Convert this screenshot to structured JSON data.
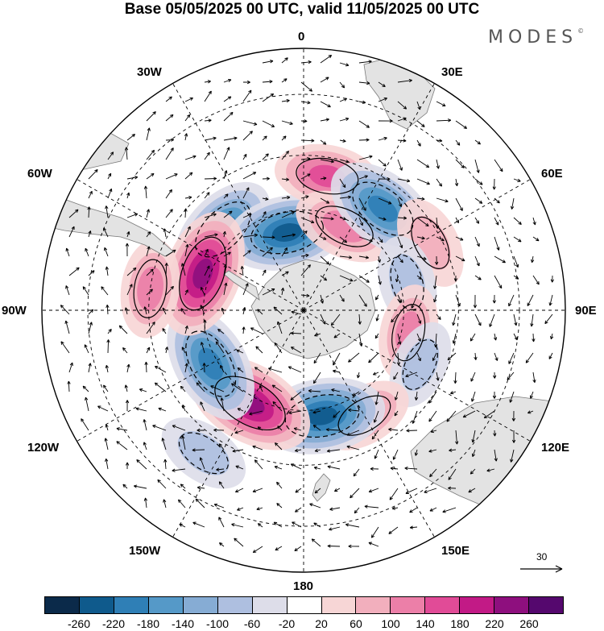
{
  "title": "Base 05/05/2025 00 UTC, valid 11/05/2025 00 UTC",
  "logo": "MODES",
  "logo_mark": "©",
  "longitude_labels": {
    "lon_0": "0",
    "lon_30e": "30E",
    "lon_60e": "60E",
    "lon_90e": "90E",
    "lon_120e": "120E",
    "lon_150e": "150E",
    "lon_180": "180",
    "lon_150w": "150W",
    "lon_120w": "120W",
    "lon_90w": "90W",
    "lon_60w": "60W",
    "lon_30w": "30W"
  },
  "projection": "south-polar-stereographic",
  "reference_vector": {
    "label": "30",
    "value": 30
  },
  "colorbar": {
    "ticks": [
      "-260",
      "-220",
      "-180",
      "-140",
      "-100",
      "-60",
      "-20",
      "20",
      "60",
      "100",
      "140",
      "180",
      "220",
      "260"
    ],
    "colors": [
      "#0b2a4a",
      "#0f5a8c",
      "#2f7fb6",
      "#5599c8",
      "#86acd4",
      "#aebfe0",
      "#dddde9",
      "#ffffff",
      "#f7d6d6",
      "#f2afbd",
      "#ec7fa8",
      "#e14b97",
      "#c21a86",
      "#8e0f7e",
      "#55086e"
    ]
  },
  "colors": {
    "land": "#e3e3e3",
    "coastline": "#7a7a7a",
    "contour": "#000000"
  },
  "anomaly_cells": [
    {
      "lon": -45,
      "lat": -56,
      "value": -170
    },
    {
      "lon": -12,
      "lat": -66,
      "value": -210
    },
    {
      "lon": 10,
      "lat": -50,
      "value": 130
    },
    {
      "lon": 26,
      "lat": -62,
      "value": 120
    },
    {
      "lon": 38,
      "lat": -52,
      "value": -190
    },
    {
      "lon": 62,
      "lat": -48,
      "value": 80
    },
    {
      "lon": 75,
      "lat": -58,
      "value": -80
    },
    {
      "lon": 102,
      "lat": -58,
      "value": 90
    },
    {
      "lon": 115,
      "lat": -52,
      "value": -60
    },
    {
      "lon": 150,
      "lat": -54,
      "value": 90
    },
    {
      "lon": 170,
      "lat": -58,
      "value": -220
    },
    {
      "lon": -150,
      "lat": -58,
      "value": 240
    },
    {
      "lon": -120,
      "lat": -58,
      "value": -200
    },
    {
      "lon": -145,
      "lat": -40,
      "value": -80
    },
    {
      "lon": -70,
      "lat": -58,
      "value": 230
    },
    {
      "lon": -82,
      "lat": -45,
      "value": 100
    }
  ]
}
